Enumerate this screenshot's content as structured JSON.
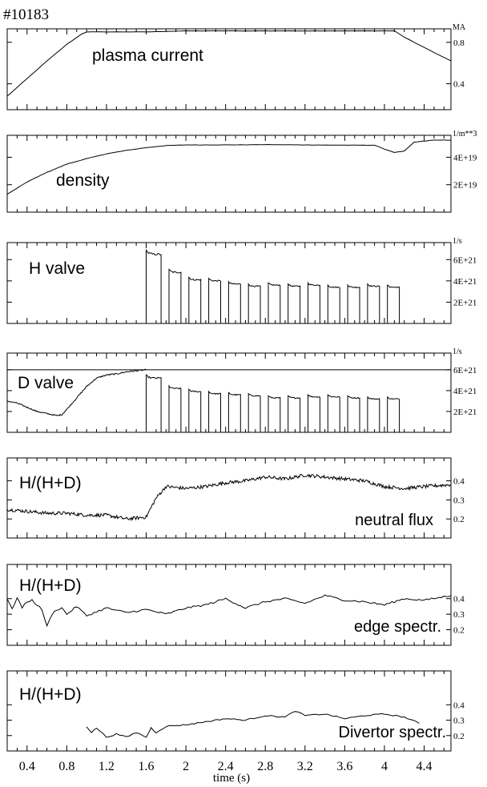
{
  "shot_label": "#10183",
  "x_axis": {
    "label": "time (s)",
    "range": [
      0.2,
      4.67
    ],
    "ticks": [
      "0.4",
      "0.8",
      "1.2",
      "1.6",
      "2",
      "2.4",
      "2.8",
      "3.2",
      "3.6",
      "4",
      "4.4"
    ],
    "tick_values": [
      0.4,
      0.8,
      1.2,
      1.6,
      2.0,
      2.4,
      2.8,
      3.2,
      3.6,
      4.0,
      4.4
    ]
  },
  "chart_data": [
    {
      "type": "line",
      "panel": "plasma-current",
      "annotation": "plasma current",
      "unit": "MA",
      "ylim": [
        0.15,
        0.93
      ],
      "yticks": [
        {
          "v": 0.8,
          "label": "0.8"
        },
        {
          "v": 0.4,
          "label": "0.4"
        }
      ],
      "series": [
        {
          "x": [
            0.2,
            0.4,
            0.6,
            0.8,
            0.95,
            1.0,
            1.2,
            1.6,
            2.0,
            2.4,
            3.0,
            3.6,
            4.0,
            4.1,
            4.2,
            4.4,
            4.67
          ],
          "y": [
            0.28,
            0.45,
            0.62,
            0.78,
            0.88,
            0.9,
            0.9,
            0.9,
            0.91,
            0.91,
            0.91,
            0.91,
            0.91,
            0.91,
            0.85,
            0.75,
            0.62
          ]
        }
      ]
    },
    {
      "type": "line",
      "panel": "density",
      "annotation": "density",
      "unit": "1/m**3",
      "ylim": [
        0,
        5.6e+19
      ],
      "yticks": [
        {
          "v": 4e+19,
          "label": "4E+19"
        },
        {
          "v": 2e+19,
          "label": "2E+19"
        }
      ],
      "series": [
        {
          "x": [
            0.2,
            0.4,
            0.6,
            0.8,
            1.0,
            1.2,
            1.4,
            1.6,
            1.8,
            2.0,
            2.4,
            2.8,
            3.2,
            3.6,
            3.9,
            4.0,
            4.1,
            4.2,
            4.3,
            4.5,
            4.67
          ],
          "y": [
            1.3e+19,
            2.2e+19,
            2.9e+19,
            3.5e+19,
            3.9e+19,
            4.25e+19,
            4.5e+19,
            4.7e+19,
            4.85e+19,
            4.9e+19,
            4.9e+19,
            4.92e+19,
            4.9e+19,
            4.88e+19,
            4.88e+19,
            4.6e+19,
            4.35e+19,
            4.45e+19,
            5.1e+19,
            5.25e+19,
            5.25e+19
          ]
        }
      ]
    },
    {
      "type": "line",
      "panel": "h-valve",
      "annotation": "H valve",
      "unit": "1/s",
      "ylim": [
        0,
        7.6e+21
      ],
      "yticks": [
        {
          "v": 6e+21,
          "label": "6E+21"
        },
        {
          "v": 4e+21,
          "label": "4E+21"
        },
        {
          "v": 2e+21,
          "label": "2E+21"
        }
      ],
      "pulse_train": {
        "first_pulse": [
          1.6,
          1.75
        ],
        "period": 0.2,
        "width": 0.12,
        "count": 13,
        "last_end": 4.15,
        "levels": [
          6.5e+21,
          4.8e+21,
          4.1e+21,
          4e+21,
          3.7e+21,
          3.5e+21,
          3.6e+21,
          3.5e+21,
          3.6e+21,
          3.4e+21,
          3.4e+21,
          3.5e+21,
          3.4e+21
        ]
      }
    },
    {
      "type": "line",
      "panel": "d-valve",
      "annotation": "D valve",
      "unit": "1/s",
      "ylim": [
        0,
        7.6e+21
      ],
      "yticks": [
        {
          "v": 6e+21,
          "label": "6E+21"
        },
        {
          "v": 4e+21,
          "label": "4E+21"
        },
        {
          "v": 2e+21,
          "label": "2E+21"
        }
      ],
      "reference_line": 6e+21,
      "series": [
        {
          "x": [
            0.2,
            0.3,
            0.4,
            0.5,
            0.6,
            0.7,
            0.75,
            0.8,
            0.9,
            1.0,
            1.1,
            1.2,
            1.3,
            1.4,
            1.5,
            1.6
          ],
          "y": [
            3e+21,
            2.8e+21,
            2.4e+21,
            2e+21,
            1.8e+21,
            1.6e+21,
            1.7e+21,
            2.2e+21,
            3.3e+21,
            4.4e+21,
            5.2e+21,
            5.5e+21,
            5.6e+21,
            5.8e+21,
            5.9e+21,
            6e+21
          ]
        }
      ],
      "pulse_train": {
        "first_pulse": [
          1.6,
          1.75
        ],
        "period": 0.2,
        "width": 0.12,
        "count": 13,
        "last_end": 4.15,
        "levels": [
          5.2e+21,
          4.2e+21,
          3.9e+21,
          3.7e+21,
          3.6e+21,
          3.5e+21,
          3.3e+21,
          3.3e+21,
          3.4e+21,
          3.4e+21,
          3.3e+21,
          3.2e+21,
          3.2e+21
        ]
      }
    },
    {
      "type": "line",
      "panel": "neutral-flux",
      "annotation": "H/(H+D)",
      "annotation2": "neutral flux",
      "ylim": [
        0.1,
        0.52
      ],
      "yticks": [
        {
          "v": 0.4,
          "label": "0.4"
        },
        {
          "v": 0.3,
          "label": "0.3"
        },
        {
          "v": 0.2,
          "label": "0.2"
        }
      ],
      "series": [
        {
          "x": [
            0.2,
            0.4,
            0.6,
            0.8,
            1.0,
            1.2,
            1.4,
            1.6,
            1.7,
            1.8,
            2.0,
            2.2,
            2.4,
            2.6,
            2.8,
            3.0,
            3.2,
            3.4,
            3.6,
            3.8,
            4.0,
            4.2,
            4.4,
            4.67
          ],
          "y": [
            0.25,
            0.24,
            0.23,
            0.23,
            0.22,
            0.22,
            0.2,
            0.21,
            0.31,
            0.37,
            0.36,
            0.37,
            0.39,
            0.4,
            0.42,
            0.41,
            0.43,
            0.42,
            0.41,
            0.4,
            0.37,
            0.36,
            0.37,
            0.38
          ]
        }
      ]
    },
    {
      "type": "line",
      "panel": "edge-spectr",
      "annotation": "H/(H+D)",
      "annotation2": "edge spectr.",
      "ylim": [
        0.1,
        0.62
      ],
      "yticks": [
        {
          "v": 0.4,
          "label": "0.4"
        },
        {
          "v": 0.3,
          "label": "0.3"
        },
        {
          "v": 0.2,
          "label": "0.2"
        }
      ],
      "series": [
        {
          "x": [
            0.2,
            0.25,
            0.3,
            0.35,
            0.4,
            0.45,
            0.5,
            0.55,
            0.6,
            0.65,
            0.7,
            0.75,
            0.8,
            0.9,
            1.0,
            1.2,
            1.4,
            1.6,
            1.8,
            2.0,
            2.2,
            2.4,
            2.6,
            2.8,
            3.0,
            3.2,
            3.4,
            3.6,
            3.8,
            4.0,
            4.2,
            4.4,
            4.67
          ],
          "y": [
            0.4,
            0.33,
            0.41,
            0.34,
            0.38,
            0.39,
            0.36,
            0.33,
            0.22,
            0.3,
            0.33,
            0.34,
            0.3,
            0.35,
            0.29,
            0.34,
            0.31,
            0.33,
            0.3,
            0.34,
            0.36,
            0.4,
            0.34,
            0.38,
            0.4,
            0.37,
            0.42,
            0.39,
            0.38,
            0.36,
            0.4,
            0.39,
            0.42
          ]
        }
      ]
    },
    {
      "type": "line",
      "panel": "divertor-spectr",
      "annotation": "H/(H+D)",
      "annotation2": "Divertor spectr.",
      "ylim": [
        0.1,
        0.62
      ],
      "yticks": [
        {
          "v": 0.4,
          "label": "0.4"
        },
        {
          "v": 0.3,
          "label": "0.3"
        },
        {
          "v": 0.2,
          "label": "0.2"
        }
      ],
      "series": [
        {
          "x": [
            1.0,
            1.05,
            1.1,
            1.2,
            1.3,
            1.4,
            1.5,
            1.6,
            1.65,
            1.7,
            1.8,
            2.0,
            2.2,
            2.4,
            2.6,
            2.8,
            3.0,
            3.1,
            3.2,
            3.4,
            3.6,
            3.8,
            4.0,
            4.2,
            4.35
          ],
          "y": [
            0.26,
            0.22,
            0.25,
            0.19,
            0.21,
            0.19,
            0.22,
            0.19,
            0.25,
            0.22,
            0.26,
            0.27,
            0.29,
            0.31,
            0.3,
            0.33,
            0.32,
            0.36,
            0.33,
            0.34,
            0.31,
            0.33,
            0.34,
            0.32,
            0.28
          ]
        }
      ]
    }
  ]
}
